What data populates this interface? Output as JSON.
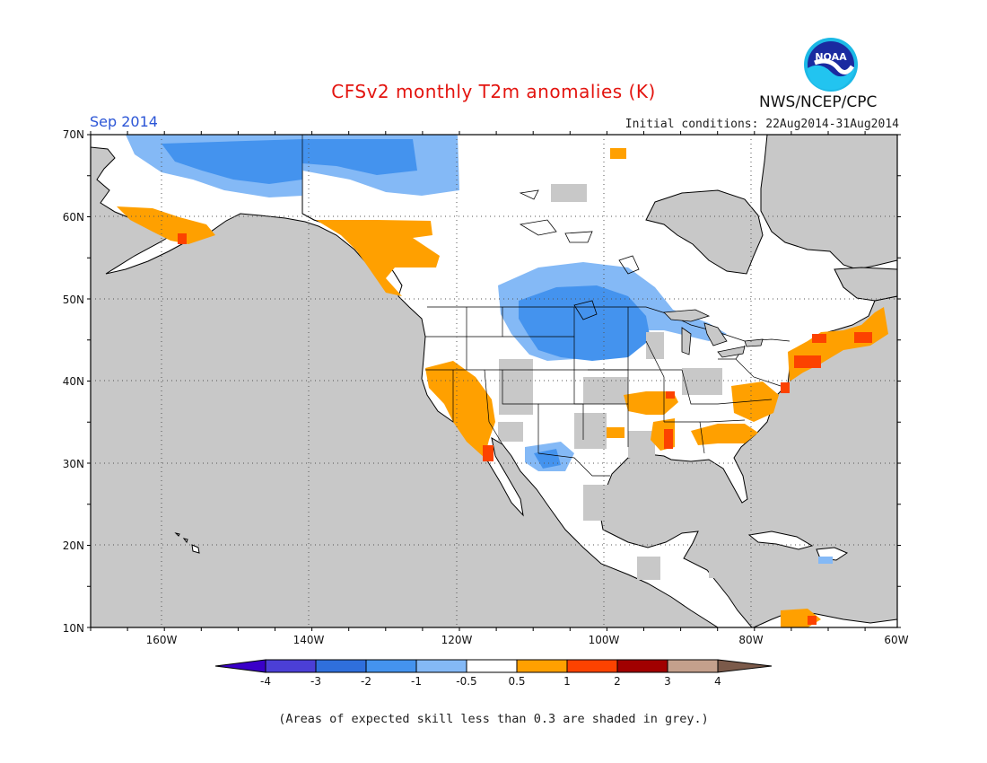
{
  "header": {
    "title": "CFSv2 monthly T2m anomalies (K)",
    "period": "Sep 2014",
    "initial_conditions": "Initial conditions: 22Aug2014-31Aug2014",
    "agency": "NWS/NCEP/CPC",
    "logo_text": "NOAA"
  },
  "axes": {
    "lat_labels": [
      "70N",
      "60N",
      "50N",
      "40N",
      "30N",
      "20N",
      "10N"
    ],
    "lon_labels": [
      "160W",
      "140W",
      "120W",
      "100W",
      "80W",
      "60W"
    ]
  },
  "legend": {
    "tick_labels": [
      "-4",
      "-3",
      "-2",
      "-1",
      "-0.5",
      "0.5",
      "1",
      "2",
      "3",
      "4"
    ],
    "colors": [
      "#3a00c8",
      "#4b3fd6",
      "#2f6fdc",
      "#4493ee",
      "#84b9f6",
      "#ffffff",
      "#ffa000",
      "#fc4200",
      "#a10000",
      "#c4a08c",
      "#7b5a4a"
    ]
  },
  "colors": {
    "ocean": "#c8c8c8",
    "land": "#ffffff",
    "grey_skill": "#c8c8c8",
    "cold_light": "#84b9f6",
    "cold_mid": "#4493ee",
    "warm": "#ffa000",
    "warm_strong": "#fc4200"
  },
  "footnote": "(Areas of expected skill less than 0.3 are shaded in grey.)"
}
